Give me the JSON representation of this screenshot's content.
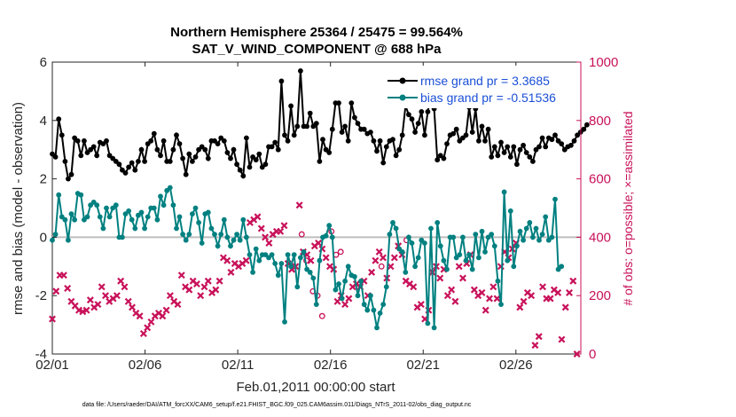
{
  "chart_data": {
    "type": "line",
    "title_line1": "Northern Hemisphere 25364 / 25475 = 99.564%",
    "title_line2": "SAT_V_WIND_COMPONENT @ 688 hPa",
    "xlabel": "Feb.01,2011 00:00:00 start",
    "ylabel": "rmse and bias (model - observation)",
    "y2label": "# of obs: o=possible; ×=assimilated",
    "ylim": [
      -4,
      6
    ],
    "y2lim": [
      0,
      1000
    ],
    "xlim": [
      1.0,
      29.5
    ],
    "xticks": [
      1,
      6,
      11,
      16,
      21,
      26
    ],
    "xtick_labels": [
      "02/01",
      "02/06",
      "02/11",
      "02/16",
      "02/21",
      "02/26"
    ],
    "yticks": [
      -4,
      -2,
      0,
      2,
      4,
      6
    ],
    "ytick_labels": [
      "-4",
      "-2",
      "0",
      "2",
      "4",
      "6"
    ],
    "y2ticks": [
      0,
      200,
      400,
      600,
      800,
      1000
    ],
    "y2tick_labels": [
      "0",
      "200",
      "400",
      "600",
      "800",
      "1000"
    ],
    "zero_line": 0,
    "legend": [
      {
        "name": "rmse",
        "label": "rmse grand pr = 3.3685",
        "color": "#000000"
      },
      {
        "name": "bias",
        "label": "bias grand pr = -0.51536",
        "color": "#008080"
      }
    ],
    "footnote": "data file: /Users/raeder/DAI/ATM_forcXX/CAM6_setup/f.e21.FHIST_BGC.f09_025.CAM6assim.011/Diags_NTrS_2011-02/obs_diag_output.nc",
    "series": [
      {
        "name": "rmse",
        "color": "#000000",
        "values": [
          2.85,
          2.75,
          4.05,
          3.5,
          2.6,
          2.0,
          2.15,
          3.4,
          3.3,
          2.8,
          3.3,
          2.9,
          3.0,
          3.1,
          2.8,
          3.25,
          3.2,
          3.3,
          2.8,
          2.7,
          2.6,
          2.5,
          2.3,
          2.2,
          2.4,
          2.55,
          2.3,
          2.6,
          3.0,
          2.6,
          3.2,
          3.3,
          3.55,
          3.0,
          2.8,
          3.3,
          2.6,
          2.6,
          3.0,
          3.5,
          3.2,
          2.7,
          2.15,
          2.85,
          2.6,
          2.75,
          3.0,
          3.1,
          3.0,
          2.7,
          3.3,
          3.3,
          3.2,
          3.4,
          3.3,
          2.9,
          2.7,
          3.0,
          2.5,
          2.3,
          2.1,
          3.4,
          2.4,
          2.75,
          2.65,
          2.85,
          2.4,
          2.5,
          3.1,
          3.1,
          3.25,
          3.0,
          5.35,
          3.5,
          3.3,
          4.5,
          3.5,
          3.8,
          5.7,
          3.8,
          3.8,
          4.25,
          3.8,
          3.9,
          2.6,
          3.35,
          3.0,
          2.9,
          3.7,
          4.6,
          4.6,
          3.6,
          3.8,
          3.3,
          4.6,
          4.1,
          3.9,
          3.7,
          3.7,
          3.55,
          3.6,
          3.3,
          2.95,
          3.3,
          2.55,
          3.1,
          3.3,
          3.35,
          2.8,
          3.0,
          3.5,
          4.5,
          4.2,
          4.05,
          3.6,
          3.9,
          4.3,
          3.5,
          4.3,
          4.9,
          4.4,
          2.65,
          2.8,
          2.7,
          3.2,
          3.5,
          3.55,
          3.7,
          3.3,
          3.4,
          3.5,
          4.45,
          3.6,
          4.4,
          3.3,
          3.8,
          3.3,
          3.7,
          2.75,
          3.1,
          2.8,
          3.25,
          2.9,
          3.1,
          2.75,
          3.1,
          2.5,
          3.0,
          3.15,
          2.9,
          2.75,
          2.6,
          3.0,
          3.1,
          3.4,
          3.1,
          3.4,
          3.35,
          3.5,
          3.3,
          3.2,
          3.0,
          3.1,
          3.15,
          3.3,
          3.5,
          3.6,
          3.7,
          3.85
        ],
        "x_start": 1.0,
        "x_step": 0.1716
      },
      {
        "name": "bias",
        "color": "#008080",
        "values": [
          -0.1,
          0.1,
          1.45,
          0.7,
          0.6,
          -0.1,
          0.8,
          0.6,
          1.5,
          1.45,
          0.6,
          0.7,
          1.1,
          1.2,
          1.1,
          0.7,
          0.3,
          1.0,
          0.7,
          1.0,
          1.1,
          0.0,
          0.0,
          0.8,
          0.9,
          0.6,
          0.3,
          0.75,
          0.85,
          0.3,
          0.7,
          1.0,
          1.0,
          0.6,
          1.4,
          1.1,
          1.6,
          1.7,
          1.1,
          0.3,
          0.7,
          0.1,
          -0.1,
          0.1,
          0.8,
          1.0,
          0.5,
          -0.2,
          0.8,
          0.85,
          0.3,
          0.1,
          -0.3,
          0.1,
          0.6,
          0.0,
          -0.3,
          -0.1,
          0.1,
          -0.1,
          0.6,
          0.0,
          -0.6,
          -1.2,
          -0.4,
          -0.8,
          -0.6,
          -0.6,
          -0.7,
          -0.6,
          -0.9,
          -1.3,
          -0.9,
          -2.9,
          -0.6,
          -1.0,
          -0.6,
          -1.7,
          -0.7,
          -0.5,
          -1.1,
          -1.2,
          -1.4,
          -2.3,
          -0.8,
          0.0,
          0.05,
          0.4,
          0.0,
          -1.8,
          -1.6,
          -2.1,
          -1.5,
          -1.0,
          -1.3,
          -1.35,
          -2.0,
          -1.5,
          -2.3,
          -2.5,
          -2.0,
          -2.5,
          -3.1,
          -2.6,
          -2.3,
          -1.7,
          0.1,
          0.5,
          0.3,
          -0.4,
          -0.5,
          -1.2,
          0.0,
          -0.2,
          -1.0,
          -0.7,
          -0.1,
          -0.2,
          -2.95,
          0.3,
          -3.1,
          0.5,
          -0.3,
          -0.8,
          -1.1,
          0.0,
          0.0,
          -0.7,
          -0.6,
          0.0,
          -0.8,
          -0.6,
          -1.1,
          0.1,
          -0.7,
          0.2,
          -0.5,
          0.0,
          0.1,
          -0.3,
          -1.5,
          -2.3,
          1.55,
          -0.8,
          0.9,
          -1.0,
          -0.3,
          0.2,
          -0.1,
          0.3,
          0.5,
          0.0,
          0.3,
          -0.1,
          0.1,
          0.7,
          -0.1,
          0.0,
          1.3,
          -1.1,
          -1.0
        ],
        "x_start": 1.0,
        "x_step": 0.1716
      },
      {
        "name": "assimilated_count",
        "color": "#c8125a",
        "marker": "x",
        "axis": "right",
        "values": [
          120,
          215,
          270,
          270,
          225,
          180,
          165,
          150,
          145,
          150,
          185,
          160,
          170,
          230,
          200,
          180,
          190,
          200,
          250,
          230,
          180,
          160,
          140,
          130,
          70,
          90,
          110,
          130,
          140,
          130,
          150,
          200,
          180,
          170,
          270,
          230,
          220,
          250,
          240,
          200,
          230,
          250,
          210,
          220,
          250,
          330,
          320,
          280,
          310,
          300,
          310,
          320,
          450,
          460,
          470,
          430,
          400,
          380,
          410,
          420,
          420,
          440,
          310,
          290,
          300,
          510,
          350,
          340,
          320,
          370,
          380,
          360,
          330,
          300,
          290,
          180,
          200,
          170,
          190,
          230,
          240,
          230,
          250,
          200,
          280,
          320,
          350,
          330,
          260,
          300,
          330,
          370,
          340,
          250,
          240,
          230,
          160,
          170,
          120,
          150,
          280,
          300,
          260,
          290,
          200,
          220,
          180,
          300,
          260,
          310,
          340,
          220,
          200,
          210,
          150,
          190,
          230,
          190,
          300,
          350,
          330,
          360,
          380,
          160,
          180,
          210,
          200,
          30,
          60,
          230,
          190,
          190,
          220,
          210,
          50,
          160,
          210,
          250,
          0
        ],
        "x_start": 1.0,
        "x_step": 0.205
      },
      {
        "name": "possible_count",
        "color": "#c8125a",
        "marker": "o",
        "axis": "right",
        "values": [
          410,
          320,
          215,
          200,
          130,
          420,
          340,
          350,
          390,
          300
        ],
        "x": [
          14.45,
          14.7,
          15.05,
          15.3,
          15.55,
          16.05,
          16.3,
          16.55,
          20.1,
          18.75
        ]
      }
    ]
  }
}
